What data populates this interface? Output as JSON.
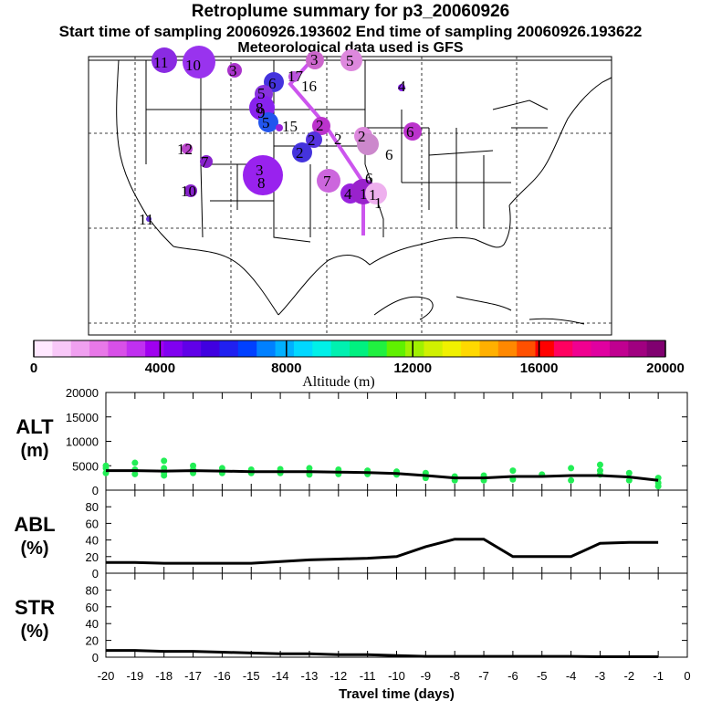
{
  "header": {
    "title": "Retroplume summary for p3_20060926",
    "sampling": "Start time of sampling 20060926.193602     End time of sampling 20060926.193622",
    "meteorology": "Meteorological data used is GFS"
  },
  "colorbar": {
    "colors": [
      "#ffe8ff",
      "#f8c8f8",
      "#f0a0f0",
      "#e878e8",
      "#d850e8",
      "#c030f0",
      "#a000f0",
      "#8000f0",
      "#6000e8",
      "#4000e0",
      "#2020f0",
      "#0040ff",
      "#0080ff",
      "#00b0ff",
      "#00d8ff",
      "#00f0e8",
      "#00f0b0",
      "#00f080",
      "#20f040",
      "#60f000",
      "#a0f000",
      "#d0f000",
      "#f0f000",
      "#ffd800",
      "#ffb000",
      "#ff8800",
      "#ff5000",
      "#ff0000",
      "#ff0060",
      "#f00090",
      "#e000a0",
      "#c00090",
      "#a00080",
      "#800070"
    ],
    "ticks": [
      "0",
      "4000",
      "8000",
      "12000",
      "16000",
      "20000"
    ],
    "label": "Altitude (m)"
  },
  "map_labels": [
    {
      "text": "11",
      "color": "#8a2be2"
    },
    {
      "text": "10",
      "color": "#9933ee"
    },
    {
      "text": "3",
      "color": "#aa33cc"
    },
    {
      "text": "3",
      "color": "#cc66cc"
    },
    {
      "text": "5",
      "color": "#dd88dd"
    },
    {
      "text": "6",
      "color": "#4433dd"
    },
    {
      "text": "17",
      "color": "#bb55dd"
    },
    {
      "text": "16",
      "color": "#9955cc"
    },
    {
      "text": "5",
      "color": "#8833dd"
    },
    {
      "text": "8",
      "color": "#6622dd"
    },
    {
      "text": "9",
      "color": "#8822ee"
    },
    {
      "text": "5",
      "color": "#2255ee"
    },
    {
      "text": "15",
      "color": "#9922dd"
    },
    {
      "text": "2",
      "color": "#bb33cc"
    },
    {
      "text": "2",
      "color": "#5533dd"
    },
    {
      "text": "2",
      "color": "#dd88dd"
    },
    {
      "text": "2",
      "color": "#cc88cc"
    },
    {
      "text": "6",
      "color": "#dd88ee"
    },
    {
      "text": "6",
      "color": "#bb33cc"
    },
    {
      "text": "12",
      "color": "#bb44cc"
    },
    {
      "text": "7",
      "color": "#8822cc"
    },
    {
      "text": "2",
      "color": "#4433dd"
    },
    {
      "text": "3",
      "color": "#9922ee"
    },
    {
      "text": "8",
      "color": "#9922ee"
    },
    {
      "text": "7",
      "color": "#cc66dd"
    },
    {
      "text": "6",
      "color": "#dd88ee"
    },
    {
      "text": "4",
      "color": "#9922dd"
    },
    {
      "text": "1",
      "color": "#9922cc"
    },
    {
      "text": "1",
      "color": "#aa33dd"
    },
    {
      "text": "1",
      "color": "#eeb0ee"
    },
    {
      "text": "10",
      "color": "#8822cc"
    },
    {
      "text": "11",
      "color": "#6633dd"
    },
    {
      "text": "4",
      "color": "#8822ee"
    }
  ],
  "chart_data": {
    "type": "line",
    "xlabel": "Travel time (days)",
    "x_ticks": [
      -20,
      -19,
      -18,
      -17,
      -16,
      -15,
      -14,
      -13,
      -12,
      -11,
      -10,
      -9,
      -8,
      -7,
      -6,
      -5,
      -4,
      -3,
      -2,
      -1,
      0
    ],
    "xlim": [
      -20,
      0
    ],
    "panels": [
      {
        "name": "ALT",
        "label_main": "ALT",
        "label_unit": "(m)",
        "ylim": [
          0,
          20000
        ],
        "yticks": [
          0,
          5000,
          10000,
          15000,
          20000
        ],
        "line": [
          [
            -20,
            4000
          ],
          [
            -19,
            4000
          ],
          [
            -18,
            3900
          ],
          [
            -17,
            4000
          ],
          [
            -16,
            3900
          ],
          [
            -15,
            3800
          ],
          [
            -14,
            3800
          ],
          [
            -13,
            3800
          ],
          [
            -12,
            3700
          ],
          [
            -11,
            3600
          ],
          [
            -10,
            3400
          ],
          [
            -9,
            3000
          ],
          [
            -8,
            2500
          ],
          [
            -7,
            2500
          ],
          [
            -6,
            2800
          ],
          [
            -5,
            2800
          ],
          [
            -4,
            3000
          ],
          [
            -3,
            3000
          ],
          [
            -2,
            2700
          ],
          [
            -1,
            2000
          ]
        ],
        "scatter": [
          [
            -20,
            5000
          ],
          [
            -20,
            3500
          ],
          [
            -20,
            4500
          ],
          [
            -19,
            5600
          ],
          [
            -19,
            4200
          ],
          [
            -19,
            3300
          ],
          [
            -18,
            6000
          ],
          [
            -18,
            3000
          ],
          [
            -18,
            3500
          ],
          [
            -18,
            4500
          ],
          [
            -17,
            5000
          ],
          [
            -17,
            3500
          ],
          [
            -17,
            4200
          ],
          [
            -16,
            4500
          ],
          [
            -16,
            3500
          ],
          [
            -15,
            4200
          ],
          [
            -15,
            3500
          ],
          [
            -14,
            4300
          ],
          [
            -14,
            3500
          ],
          [
            -13,
            4500
          ],
          [
            -13,
            3700
          ],
          [
            -13,
            3200
          ],
          [
            -12,
            4200
          ],
          [
            -12,
            3300
          ],
          [
            -11,
            4000
          ],
          [
            -11,
            3300
          ],
          [
            -10,
            3800
          ],
          [
            -10,
            3200
          ],
          [
            -9,
            3500
          ],
          [
            -9,
            2500
          ],
          [
            -8,
            2800
          ],
          [
            -8,
            2000
          ],
          [
            -7,
            3000
          ],
          [
            -7,
            2000
          ],
          [
            -6,
            4000
          ],
          [
            -6,
            2200
          ],
          [
            -5,
            3200
          ],
          [
            -4,
            4500
          ],
          [
            -4,
            2000
          ],
          [
            -3,
            5200
          ],
          [
            -3,
            4000
          ],
          [
            -3,
            3200
          ],
          [
            -2,
            3500
          ],
          [
            -2,
            2000
          ],
          [
            -1,
            2500
          ],
          [
            -1,
            1500
          ],
          [
            -1,
            800
          ]
        ]
      },
      {
        "name": "ABL",
        "label_main": "ABL",
        "label_unit": "(%)",
        "ylim": [
          0,
          100
        ],
        "yticks": [
          0,
          20,
          40,
          60,
          80
        ],
        "line": [
          [
            -20,
            13
          ],
          [
            -19,
            13
          ],
          [
            -18,
            12
          ],
          [
            -17,
            12
          ],
          [
            -16,
            12
          ],
          [
            -15,
            12
          ],
          [
            -14,
            14
          ],
          [
            -13,
            16
          ],
          [
            -12,
            17
          ],
          [
            -11,
            18
          ],
          [
            -10,
            20
          ],
          [
            -9,
            32
          ],
          [
            -8,
            41
          ],
          [
            -7,
            41
          ],
          [
            -6,
            20
          ],
          [
            -5,
            20
          ],
          [
            -4,
            20
          ],
          [
            -3,
            36
          ],
          [
            -2,
            37
          ],
          [
            -1,
            37
          ]
        ]
      },
      {
        "name": "STR",
        "label_main": "STR",
        "label_unit": "(%)",
        "ylim": [
          0,
          100
        ],
        "yticks": [
          0,
          20,
          40,
          60,
          80
        ],
        "line": [
          [
            -20,
            8
          ],
          [
            -19,
            8
          ],
          [
            -18,
            7
          ],
          [
            -17,
            7
          ],
          [
            -16,
            6
          ],
          [
            -15,
            5
          ],
          [
            -14,
            4
          ],
          [
            -13,
            4
          ],
          [
            -12,
            3
          ],
          [
            -11,
            3
          ],
          [
            -10,
            2
          ],
          [
            -9,
            1
          ],
          [
            -8,
            1
          ],
          [
            -7,
            1
          ],
          [
            -6,
            1
          ],
          [
            -5,
            1
          ],
          [
            -4,
            1
          ],
          [
            -3,
            0.5
          ],
          [
            -2,
            0.5
          ],
          [
            -1,
            0.5
          ]
        ]
      }
    ]
  }
}
